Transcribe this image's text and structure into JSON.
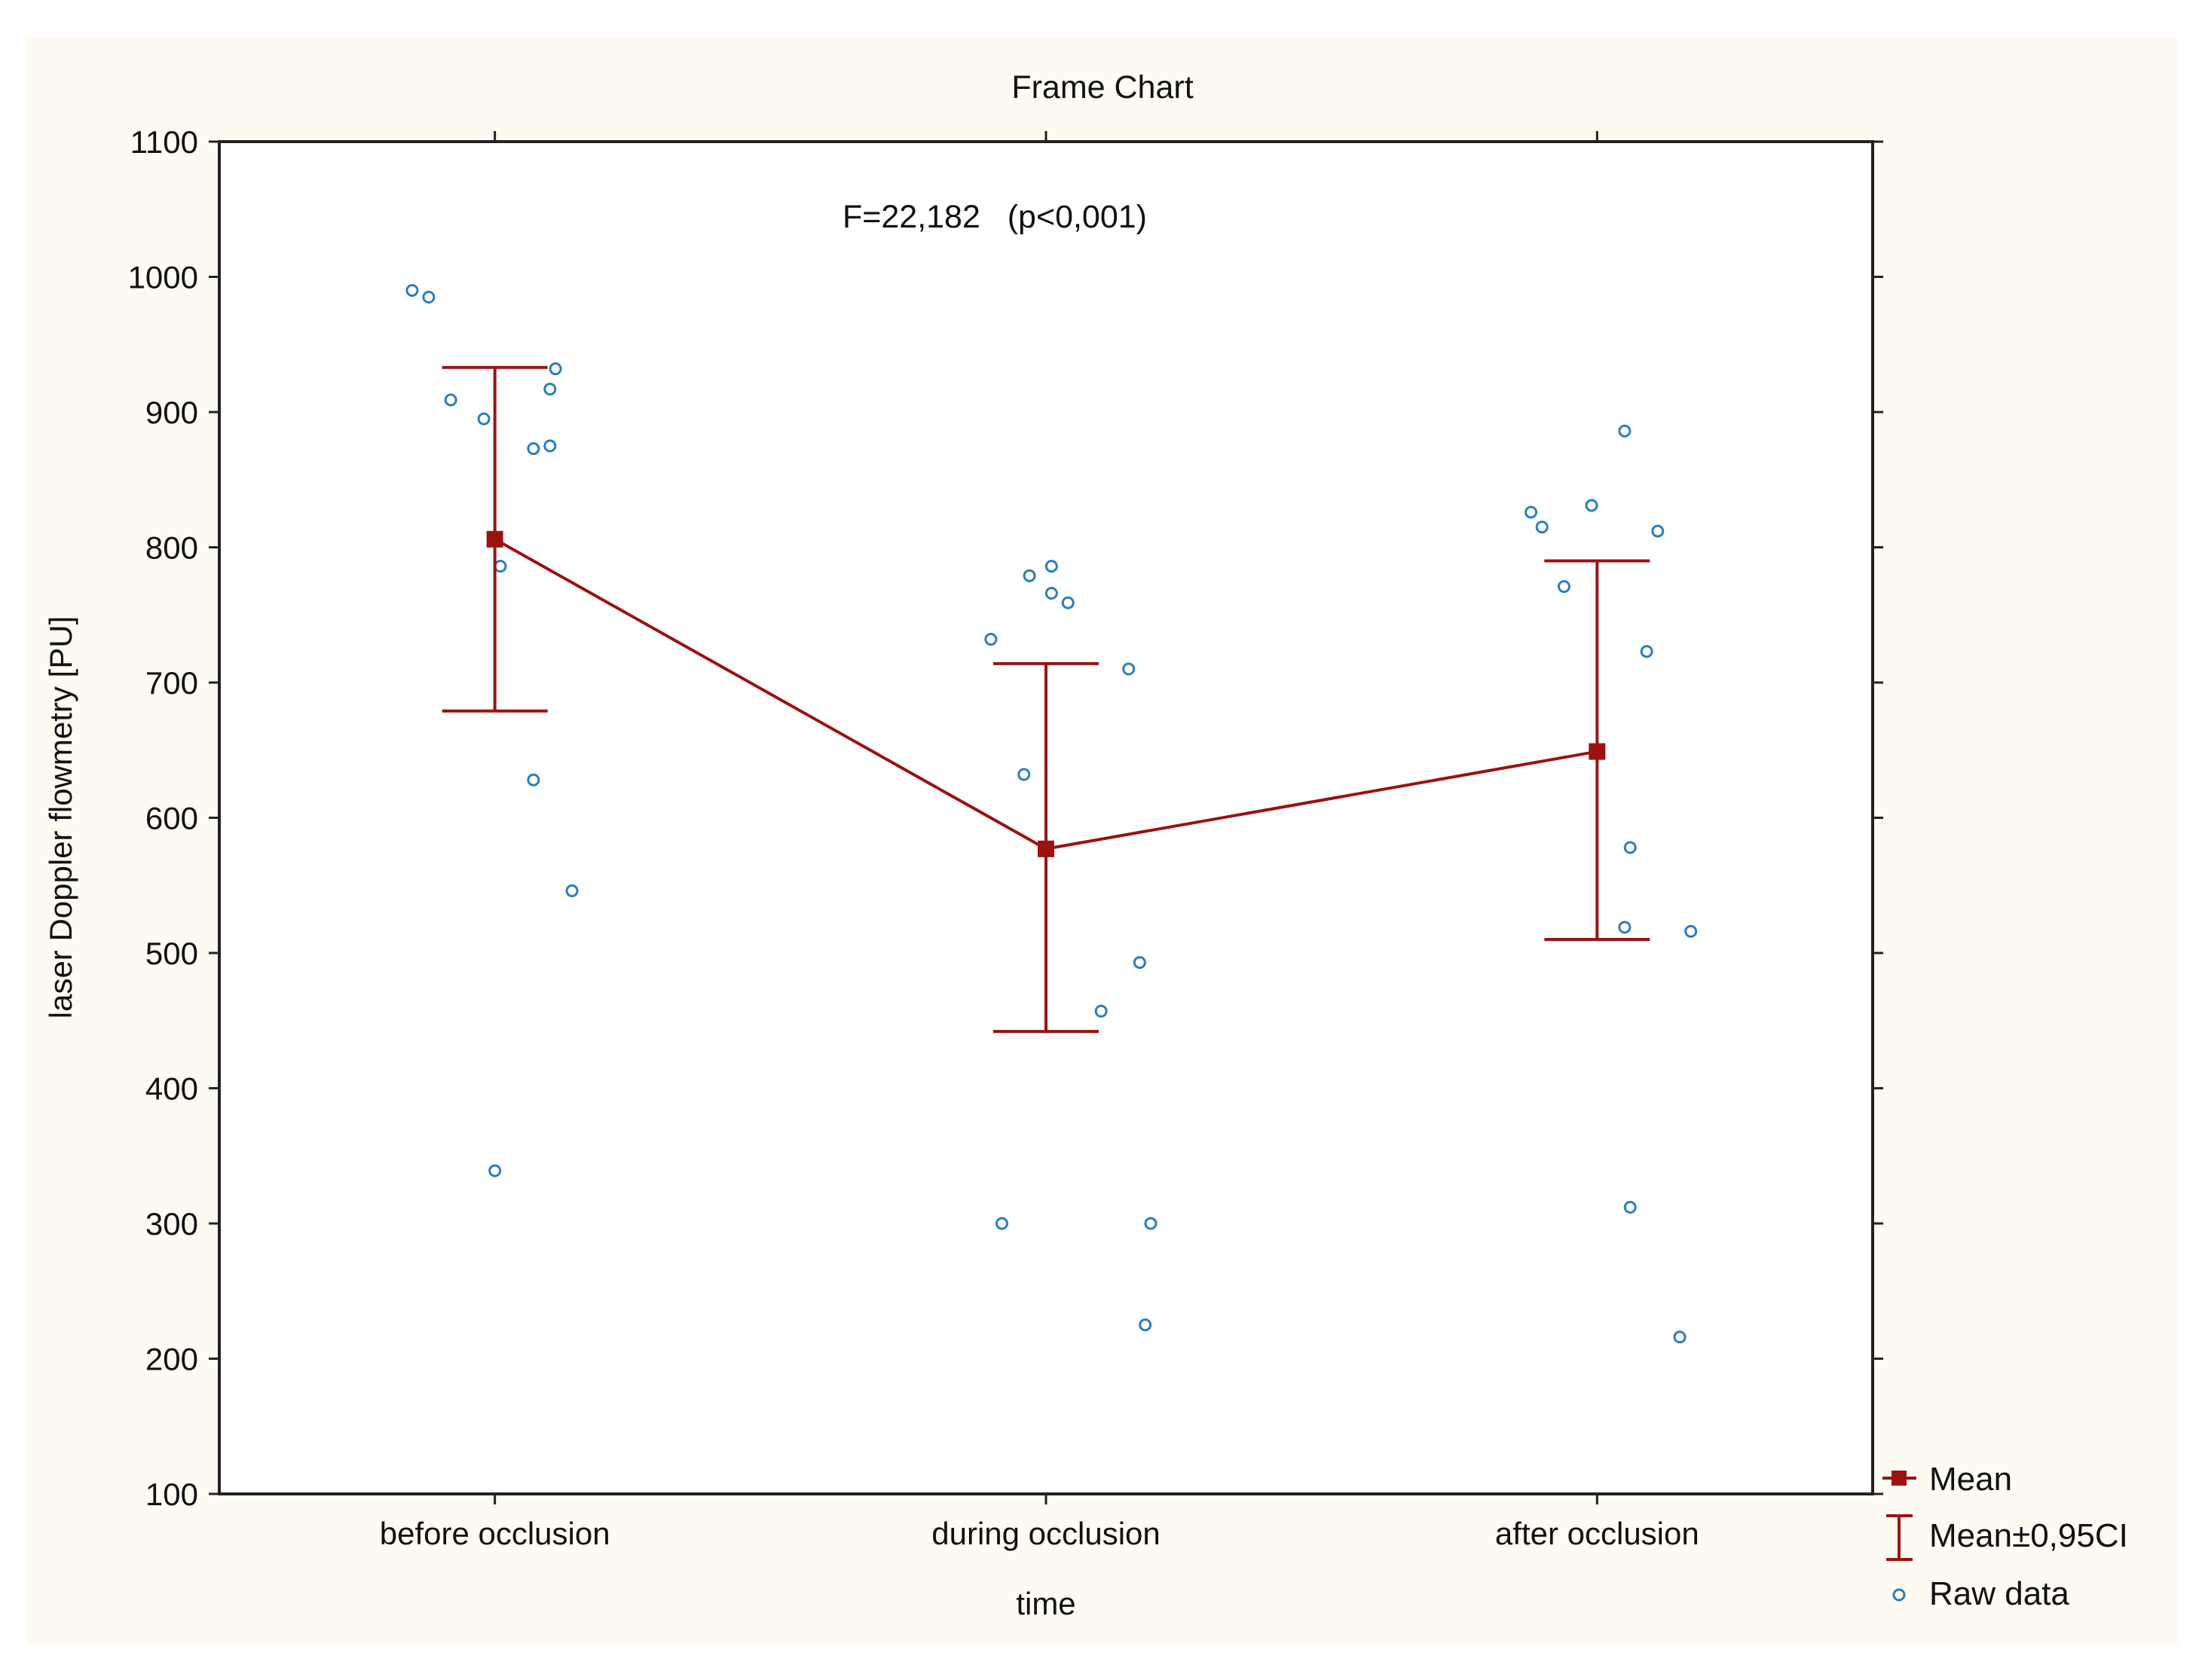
{
  "colors": {
    "panel_background": "#fdfaf2",
    "plot_background": "#ffffff",
    "mean_color": "#9b1212",
    "raw_data_color": "#2a7fb8",
    "axis_color": "#222222"
  },
  "chart_data": {
    "type": "scatter",
    "title": "Frame Chart",
    "annotation": "F=22,182   (p<0,001)",
    "xlabel": "time",
    "ylabel": "laser Doppler flowmetry [PU]",
    "categories": [
      "before occlusion",
      "during occlusion",
      "after occlusion"
    ],
    "ylim": [
      100,
      1100
    ],
    "yticks": [
      100,
      200,
      300,
      400,
      500,
      600,
      700,
      800,
      900,
      1000,
      1100
    ],
    "grid": true,
    "legend": {
      "position": "bottom-right outside",
      "entries": [
        "Mean",
        "Mean±0,95CI",
        "Raw data"
      ]
    },
    "series": [
      {
        "name": "Mean",
        "kind": "line-with-markers",
        "values": [
          806,
          577,
          649
        ]
      },
      {
        "name": "Mean±0,95CI",
        "kind": "error-bars",
        "lower": [
          679,
          442,
          510
        ],
        "upper": [
          933,
          714,
          790
        ]
      },
      {
        "name": "Raw data",
        "kind": "scatter",
        "points": [
          {
            "category": 0,
            "offset": -0.15,
            "y": 990
          },
          {
            "category": 0,
            "offset": -0.12,
            "y": 985
          },
          {
            "category": 0,
            "offset": -0.08,
            "y": 909
          },
          {
            "category": 0,
            "offset": -0.02,
            "y": 895
          },
          {
            "category": 0,
            "offset": 0.11,
            "y": 932
          },
          {
            "category": 0,
            "offset": 0.1,
            "y": 917
          },
          {
            "category": 0,
            "offset": 0.07,
            "y": 873
          },
          {
            "category": 0,
            "offset": 0.1,
            "y": 875
          },
          {
            "category": 0,
            "offset": 0.01,
            "y": 786
          },
          {
            "category": 0,
            "offset": 0.07,
            "y": 628
          },
          {
            "category": 0,
            "offset": 0.14,
            "y": 546
          },
          {
            "category": 0,
            "offset": 0.0,
            "y": 339
          },
          {
            "category": 1,
            "offset": -0.03,
            "y": 779
          },
          {
            "category": 1,
            "offset": 0.01,
            "y": 786
          },
          {
            "category": 1,
            "offset": 0.01,
            "y": 766
          },
          {
            "category": 1,
            "offset": 0.04,
            "y": 759
          },
          {
            "category": 1,
            "offset": -0.1,
            "y": 732
          },
          {
            "category": 1,
            "offset": 0.15,
            "y": 710
          },
          {
            "category": 1,
            "offset": -0.04,
            "y": 632
          },
          {
            "category": 1,
            "offset": 0.17,
            "y": 493
          },
          {
            "category": 1,
            "offset": 0.1,
            "y": 457
          },
          {
            "category": 1,
            "offset": -0.08,
            "y": 300
          },
          {
            "category": 1,
            "offset": 0.19,
            "y": 300
          },
          {
            "category": 1,
            "offset": 0.18,
            "y": 225
          },
          {
            "category": 2,
            "offset": -0.12,
            "y": 826
          },
          {
            "category": 2,
            "offset": -0.1,
            "y": 815
          },
          {
            "category": 2,
            "offset": -0.01,
            "y": 831
          },
          {
            "category": 2,
            "offset": 0.05,
            "y": 886
          },
          {
            "category": 2,
            "offset": 0.11,
            "y": 812
          },
          {
            "category": 2,
            "offset": -0.06,
            "y": 771
          },
          {
            "category": 2,
            "offset": 0.09,
            "y": 723
          },
          {
            "category": 2,
            "offset": 0.06,
            "y": 578
          },
          {
            "category": 2,
            "offset": 0.05,
            "y": 519
          },
          {
            "category": 2,
            "offset": 0.17,
            "y": 516
          },
          {
            "category": 2,
            "offset": 0.06,
            "y": 312
          },
          {
            "category": 2,
            "offset": 0.15,
            "y": 216
          }
        ]
      }
    ]
  }
}
